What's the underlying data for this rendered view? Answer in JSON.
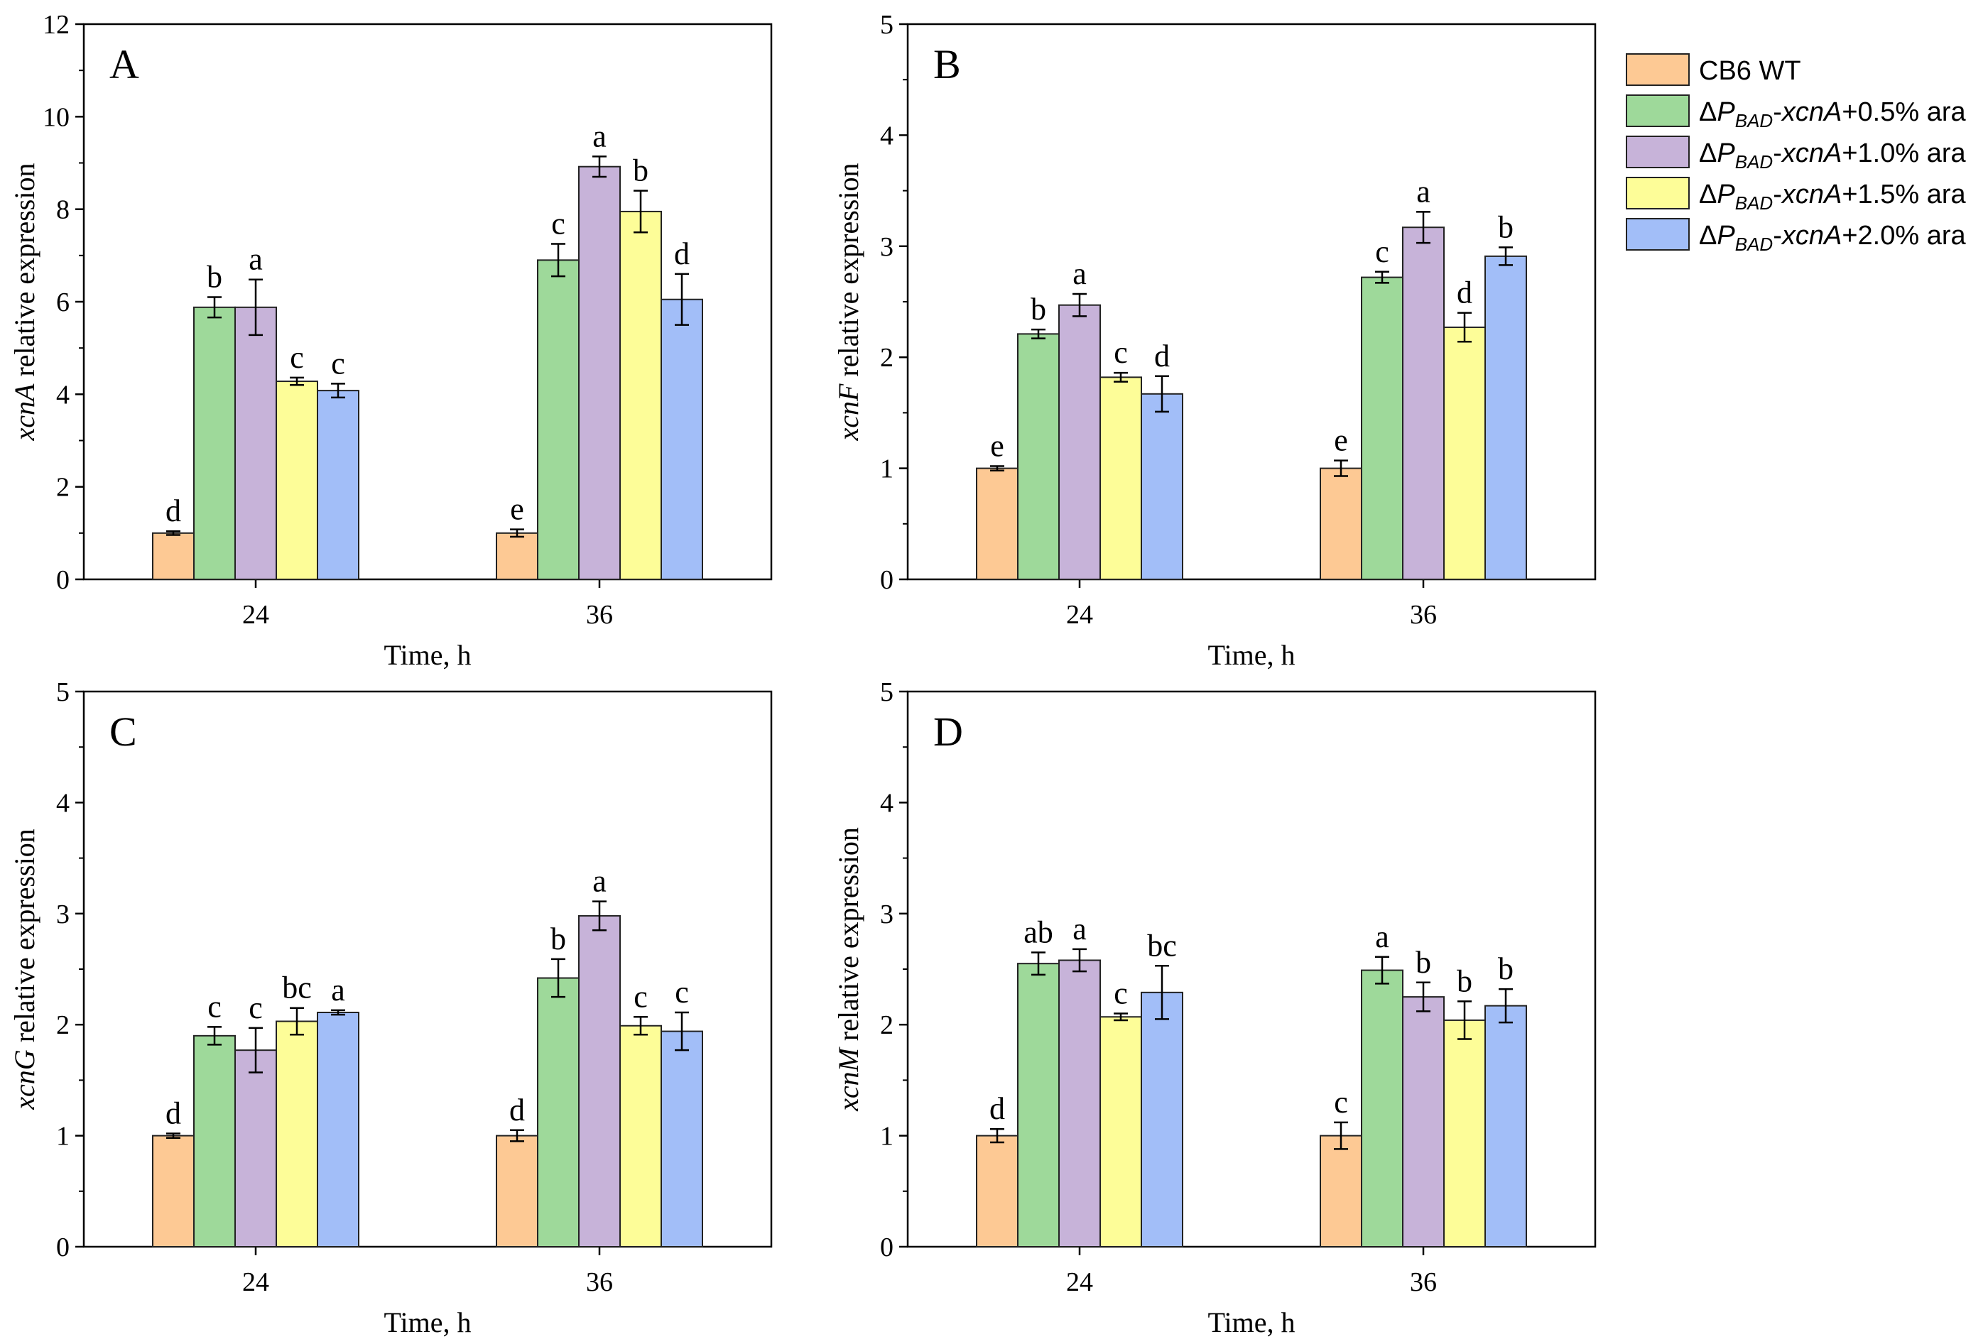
{
  "series_styles": [
    {
      "fill": "#fdc994"
    },
    {
      "fill": "#9ed99a"
    },
    {
      "fill": "#c7b3d9"
    },
    {
      "fill": "#fdfd98"
    },
    {
      "fill": "#a2bef8"
    }
  ],
  "legend": {
    "entries": [
      {
        "plain": "CB6 WT"
      },
      {
        "prefix": "Δ",
        "italic": "P",
        "sub": "BAD",
        "mid": "-",
        "italic2": "xcnA",
        "suffix": "+0.5% ara"
      },
      {
        "prefix": "Δ",
        "italic": "P",
        "sub": "BAD",
        "mid": "-",
        "italic2": "xcnA",
        "suffix": "+1.0% ara"
      },
      {
        "prefix": "Δ",
        "italic": "P",
        "sub": "BAD",
        "mid": "-",
        "italic2": "xcnA",
        "suffix": "+1.5% ara"
      },
      {
        "prefix": "Δ",
        "italic": "P",
        "sub": "BAD",
        "mid": "-",
        "italic2": "xcnA",
        "suffix": "+2.0% ara"
      }
    ]
  },
  "chart_data": [
    {
      "type": "bar",
      "panel_label": "A",
      "ylabel_gene": "xcnA",
      "ylabel_rest": " relative expression",
      "xlabel": "Time, h",
      "categories": [
        "24",
        "36"
      ],
      "ylim": [
        0,
        12
      ],
      "yticks": [
        "0",
        "2",
        "4",
        "6",
        "8",
        "10",
        "12"
      ],
      "ytick_values": [
        0,
        2,
        4,
        6,
        8,
        10,
        12
      ],
      "series": [
        {
          "name": "CB6 WT",
          "values": [
            1.0,
            1.0
          ],
          "errors": [
            0.04,
            0.08
          ],
          "letters": [
            "d",
            "e"
          ]
        },
        {
          "name": "ΔPBAD-xcnA+0.5% ara",
          "values": [
            5.88,
            6.9
          ],
          "errors": [
            0.22,
            0.35
          ],
          "letters": [
            "b",
            "c"
          ]
        },
        {
          "name": "ΔPBAD-xcnA+1.0% ara",
          "values": [
            5.88,
            8.92
          ],
          "errors": [
            0.6,
            0.22
          ],
          "letters": [
            "a",
            "a"
          ]
        },
        {
          "name": "ΔPBAD-xcnA+1.5% ara",
          "values": [
            4.28,
            7.95
          ],
          "errors": [
            0.08,
            0.45
          ],
          "letters": [
            "c",
            "b"
          ]
        },
        {
          "name": "ΔPBAD-xcnA+2.0% ara",
          "values": [
            4.08,
            6.05
          ],
          "errors": [
            0.15,
            0.55
          ],
          "letters": [
            "c",
            "d"
          ]
        }
      ]
    },
    {
      "type": "bar",
      "panel_label": "B",
      "ylabel_gene": "xcnF",
      "ylabel_rest": " relative expression",
      "xlabel": "Time, h",
      "categories": [
        "24",
        "36"
      ],
      "ylim": [
        0,
        5
      ],
      "yticks": [
        "0",
        "1",
        "2",
        "3",
        "4",
        "5"
      ],
      "ytick_values": [
        0,
        1,
        2,
        3,
        4,
        5
      ],
      "series": [
        {
          "name": "CB6 WT",
          "values": [
            1.0,
            1.0
          ],
          "errors": [
            0.02,
            0.07
          ],
          "letters": [
            "e",
            "e"
          ]
        },
        {
          "name": "ΔPBAD-xcnA+0.5% ara",
          "values": [
            2.21,
            2.72
          ],
          "errors": [
            0.04,
            0.05
          ],
          "letters": [
            "b",
            "c"
          ]
        },
        {
          "name": "ΔPBAD-xcnA+1.0% ara",
          "values": [
            2.47,
            3.17
          ],
          "errors": [
            0.1,
            0.14
          ],
          "letters": [
            "a",
            "a"
          ]
        },
        {
          "name": "ΔPBAD-xcnA+1.5% ara",
          "values": [
            1.82,
            2.27
          ],
          "errors": [
            0.04,
            0.13
          ],
          "letters": [
            "c",
            "d"
          ]
        },
        {
          "name": "ΔPBAD-xcnA+2.0% ara",
          "values": [
            1.67,
            2.91
          ],
          "errors": [
            0.16,
            0.08
          ],
          "letters": [
            "d",
            "b"
          ]
        }
      ]
    },
    {
      "type": "bar",
      "panel_label": "C",
      "ylabel_gene": "xcnG",
      "ylabel_rest": " relative expression",
      "xlabel": "Time, h",
      "categories": [
        "24",
        "36"
      ],
      "ylim": [
        0,
        5
      ],
      "yticks": [
        "0",
        "1",
        "2",
        "3",
        "4",
        "5"
      ],
      "ytick_values": [
        0,
        1,
        2,
        3,
        4,
        5
      ],
      "series": [
        {
          "name": "CB6 WT",
          "values": [
            1.0,
            1.0
          ],
          "errors": [
            0.02,
            0.05
          ],
          "letters": [
            "d",
            "d"
          ]
        },
        {
          "name": "ΔPBAD-xcnA+0.5% ara",
          "values": [
            1.9,
            2.42
          ],
          "errors": [
            0.08,
            0.17
          ],
          "letters": [
            "c",
            "b"
          ]
        },
        {
          "name": "ΔPBAD-xcnA+1.0% ara",
          "values": [
            1.77,
            2.98
          ],
          "errors": [
            0.2,
            0.13
          ],
          "letters": [
            "c",
            "a"
          ]
        },
        {
          "name": "ΔPBAD-xcnA+1.5% ara",
          "values": [
            2.03,
            1.99
          ],
          "errors": [
            0.12,
            0.08
          ],
          "letters": [
            "bc",
            "c"
          ]
        },
        {
          "name": "ΔPBAD-xcnA+2.0% ara",
          "values": [
            2.11,
            1.94
          ],
          "errors": [
            0.02,
            0.17
          ],
          "letters": [
            "a",
            "c"
          ]
        }
      ]
    },
    {
      "type": "bar",
      "panel_label": "D",
      "ylabel_gene": "xcnM",
      "ylabel_rest": " relative expression",
      "xlabel": "Time, h",
      "categories": [
        "24",
        "36"
      ],
      "ylim": [
        0,
        5
      ],
      "yticks": [
        "0",
        "1",
        "2",
        "3",
        "4",
        "5"
      ],
      "ytick_values": [
        0,
        1,
        2,
        3,
        4,
        5
      ],
      "series": [
        {
          "name": "CB6 WT",
          "values": [
            1.0,
            1.0
          ],
          "errors": [
            0.06,
            0.12
          ],
          "letters": [
            "d",
            "c"
          ]
        },
        {
          "name": "ΔPBAD-xcnA+0.5% ara",
          "values": [
            2.55,
            2.49
          ],
          "errors": [
            0.1,
            0.12
          ],
          "letters": [
            "ab",
            "a"
          ]
        },
        {
          "name": "ΔPBAD-xcnA+1.0% ara",
          "values": [
            2.58,
            2.25
          ],
          "errors": [
            0.1,
            0.13
          ],
          "letters": [
            "a",
            "b"
          ]
        },
        {
          "name": "ΔPBAD-xcnA+1.5% ara",
          "values": [
            2.07,
            2.04
          ],
          "errors": [
            0.03,
            0.17
          ],
          "letters": [
            "c",
            "b"
          ]
        },
        {
          "name": "ΔPBAD-xcnA+2.0% ara",
          "values": [
            2.29,
            2.17
          ],
          "errors": [
            0.24,
            0.15
          ],
          "letters": [
            "bc",
            "b"
          ]
        }
      ]
    }
  ]
}
